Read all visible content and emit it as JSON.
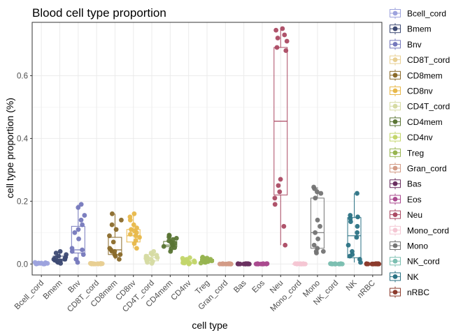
{
  "chart_data": {
    "type": "box",
    "title": "Blood cell type proportion",
    "xlabel": "cell type",
    "ylabel": "cell type proportion (%)",
    "ylim": [
      -0.035,
      0.77
    ],
    "yticks": [
      0.0,
      0.2,
      0.4,
      0.6
    ],
    "ytick_labels": [
      "0.0",
      "0.2",
      "0.4",
      "0.6"
    ],
    "grid": true,
    "legend_position": "right",
    "categories": [
      "Bcell_cord",
      "Bmem",
      "Bnv",
      "CD8T_cord",
      "CD8mem",
      "CD8nv",
      "CD4T_cord",
      "CD4mem",
      "CD4nv",
      "Treg",
      "Gran_cord",
      "Bas",
      "Eos",
      "Neu",
      "Mono_cord",
      "Mono",
      "NK_cord",
      "NK",
      "nRBC"
    ],
    "series": [
      {
        "name": "Bcell_cord",
        "color": "#9da3dd",
        "box": [
          0,
          0,
          0,
          0,
          0.005
        ],
        "points": [
          0,
          0.001,
          0.002,
          0.003,
          0.001,
          0.004,
          0,
          0.002,
          0.003,
          0.001,
          0.005,
          0.002,
          0,
          0.003
        ]
      },
      {
        "name": "Bmem",
        "color": "#3d4a73",
        "box": [
          0.002,
          0.01,
          0.015,
          0.025,
          0.04
        ],
        "points": [
          0.002,
          0.005,
          0.008,
          0.01,
          0.012,
          0.015,
          0.018,
          0.02,
          0.025,
          0.03,
          0.035,
          0.04,
          0.022,
          0.015
        ]
      },
      {
        "name": "Bnv",
        "color": "#7578bc",
        "box": [
          0.005,
          0.035,
          0.045,
          0.12,
          0.19
        ],
        "points": [
          0.005,
          0.015,
          0.03,
          0.04,
          0.045,
          0.05,
          0.08,
          0.1,
          0.11,
          0.125,
          0.14,
          0.155,
          0.18,
          0.19
        ]
      },
      {
        "name": "CD8T_cord",
        "color": "#e8cf92",
        "box": [
          0,
          0,
          0,
          0,
          0.002
        ],
        "points": [
          0,
          0.001,
          0,
          0.002,
          0.001,
          0,
          0.001,
          0.002,
          0,
          0.001,
          0.002,
          0.001,
          0,
          0.001
        ]
      },
      {
        "name": "CD8mem",
        "color": "#8a6a2a",
        "box": [
          0.015,
          0.03,
          0.045,
          0.085,
          0.16
        ],
        "points": [
          0.015,
          0.025,
          0.03,
          0.04,
          0.045,
          0.05,
          0.07,
          0.09,
          0.11,
          0.125,
          0.14,
          0.16,
          0.04,
          0.03
        ]
      },
      {
        "name": "CD8nv",
        "color": "#e8b84a",
        "box": [
          0.05,
          0.07,
          0.09,
          0.11,
          0.16
        ],
        "points": [
          0.05,
          0.065,
          0.075,
          0.085,
          0.09,
          0.095,
          0.1,
          0.105,
          0.11,
          0.115,
          0.125,
          0.14,
          0.15,
          0.16
        ]
      },
      {
        "name": "CD4T_cord",
        "color": "#d6dba3",
        "box": [
          0,
          0.01,
          0.02,
          0.03,
          0.04
        ],
        "points": [
          0.002,
          0.008,
          0.012,
          0.015,
          0.02,
          0.022,
          0.025,
          0.028,
          0.03,
          0.035,
          0.04,
          0.018,
          0.01,
          0.005
        ]
      },
      {
        "name": "CD4mem",
        "color": "#5a7535",
        "box": [
          0.04,
          0.055,
          0.06,
          0.072,
          0.092
        ],
        "points": [
          0.04,
          0.048,
          0.052,
          0.056,
          0.06,
          0.063,
          0.066,
          0.07,
          0.074,
          0.078,
          0.082,
          0.086,
          0.09,
          0.092
        ]
      },
      {
        "name": "CD4nv",
        "color": "#c3d66c",
        "box": [
          0,
          0.002,
          0.005,
          0.01,
          0.02
        ],
        "points": [
          0,
          0.002,
          0.004,
          0.005,
          0.006,
          0.008,
          0.01,
          0.012,
          0.015,
          0.018,
          0.02,
          0.003,
          0.007,
          0.011
        ]
      },
      {
        "name": "Treg",
        "color": "#97b450",
        "box": [
          0.003,
          0.006,
          0.01,
          0.015,
          0.022
        ],
        "points": [
          0.003,
          0.005,
          0.006,
          0.008,
          0.01,
          0.011,
          0.012,
          0.014,
          0.015,
          0.017,
          0.019,
          0.02,
          0.022,
          0.009
        ]
      },
      {
        "name": "Gran_cord",
        "color": "#d39b86",
        "box": [
          0,
          0,
          0,
          0,
          0.001
        ],
        "points": [
          0,
          0,
          0.001,
          0,
          0,
          0.001,
          0,
          0,
          0.001,
          0,
          0,
          0.001,
          0,
          0
        ]
      },
      {
        "name": "Bas",
        "color": "#6a3060",
        "box": [
          0,
          0,
          0,
          0,
          0.001
        ],
        "points": [
          0,
          0,
          0.001,
          0,
          0,
          0.001,
          0,
          0,
          0.001,
          0,
          0,
          0.001,
          0,
          0
        ]
      },
      {
        "name": "Eos",
        "color": "#aa4a8f",
        "box": [
          0,
          0,
          0,
          0,
          0.001
        ],
        "points": [
          0,
          0,
          0.001,
          0,
          0,
          0.001,
          0,
          0,
          0.001,
          0,
          0,
          0.001,
          0,
          0
        ]
      },
      {
        "name": "Neu",
        "color": "#ab4a63",
        "box": [
          0.06,
          0.22,
          0.455,
          0.69,
          0.75
        ],
        "points": [
          0.06,
          0.12,
          0.19,
          0.23,
          0.25,
          0.27,
          0.68,
          0.69,
          0.71,
          0.72,
          0.73,
          0.745,
          0.75,
          0.21
        ]
      },
      {
        "name": "Mono_cord",
        "color": "#f4c6d3",
        "box": [
          0,
          0,
          0,
          0,
          0.001
        ],
        "points": [
          0,
          0,
          0.001,
          0,
          0,
          0.001,
          0,
          0,
          0.001,
          0,
          0,
          0.001,
          0,
          0
        ]
      },
      {
        "name": "Mono",
        "color": "#747474",
        "box": [
          0.035,
          0.05,
          0.1,
          0.21,
          0.245
        ],
        "points": [
          0.035,
          0.04,
          0.05,
          0.06,
          0.08,
          0.1,
          0.12,
          0.14,
          0.21,
          0.225,
          0.23,
          0.24,
          0.245,
          0.04
        ]
      },
      {
        "name": "NK_cord",
        "color": "#7cbfb1",
        "box": [
          0,
          0,
          0,
          0,
          0.001
        ],
        "points": [
          0,
          0,
          0.001,
          0,
          0,
          0.001,
          0,
          0,
          0.001,
          0,
          0,
          0.001,
          0,
          0
        ]
      },
      {
        "name": "NK",
        "color": "#2b7284",
        "box": [
          0.005,
          0.02,
          0.09,
          0.148,
          0.225
        ],
        "points": [
          0.005,
          0.015,
          0.025,
          0.04,
          0.06,
          0.085,
          0.1,
          0.12,
          0.135,
          0.145,
          0.15,
          0.155,
          0.225,
          0.03
        ]
      },
      {
        "name": "nRBC",
        "color": "#8c3b2c",
        "box": [
          0,
          0,
          0,
          0,
          0.001
        ],
        "points": [
          0,
          0,
          0.001,
          0,
          0,
          0.001,
          0,
          0,
          0.001,
          0,
          0,
          0.001,
          0,
          0
        ]
      }
    ]
  }
}
